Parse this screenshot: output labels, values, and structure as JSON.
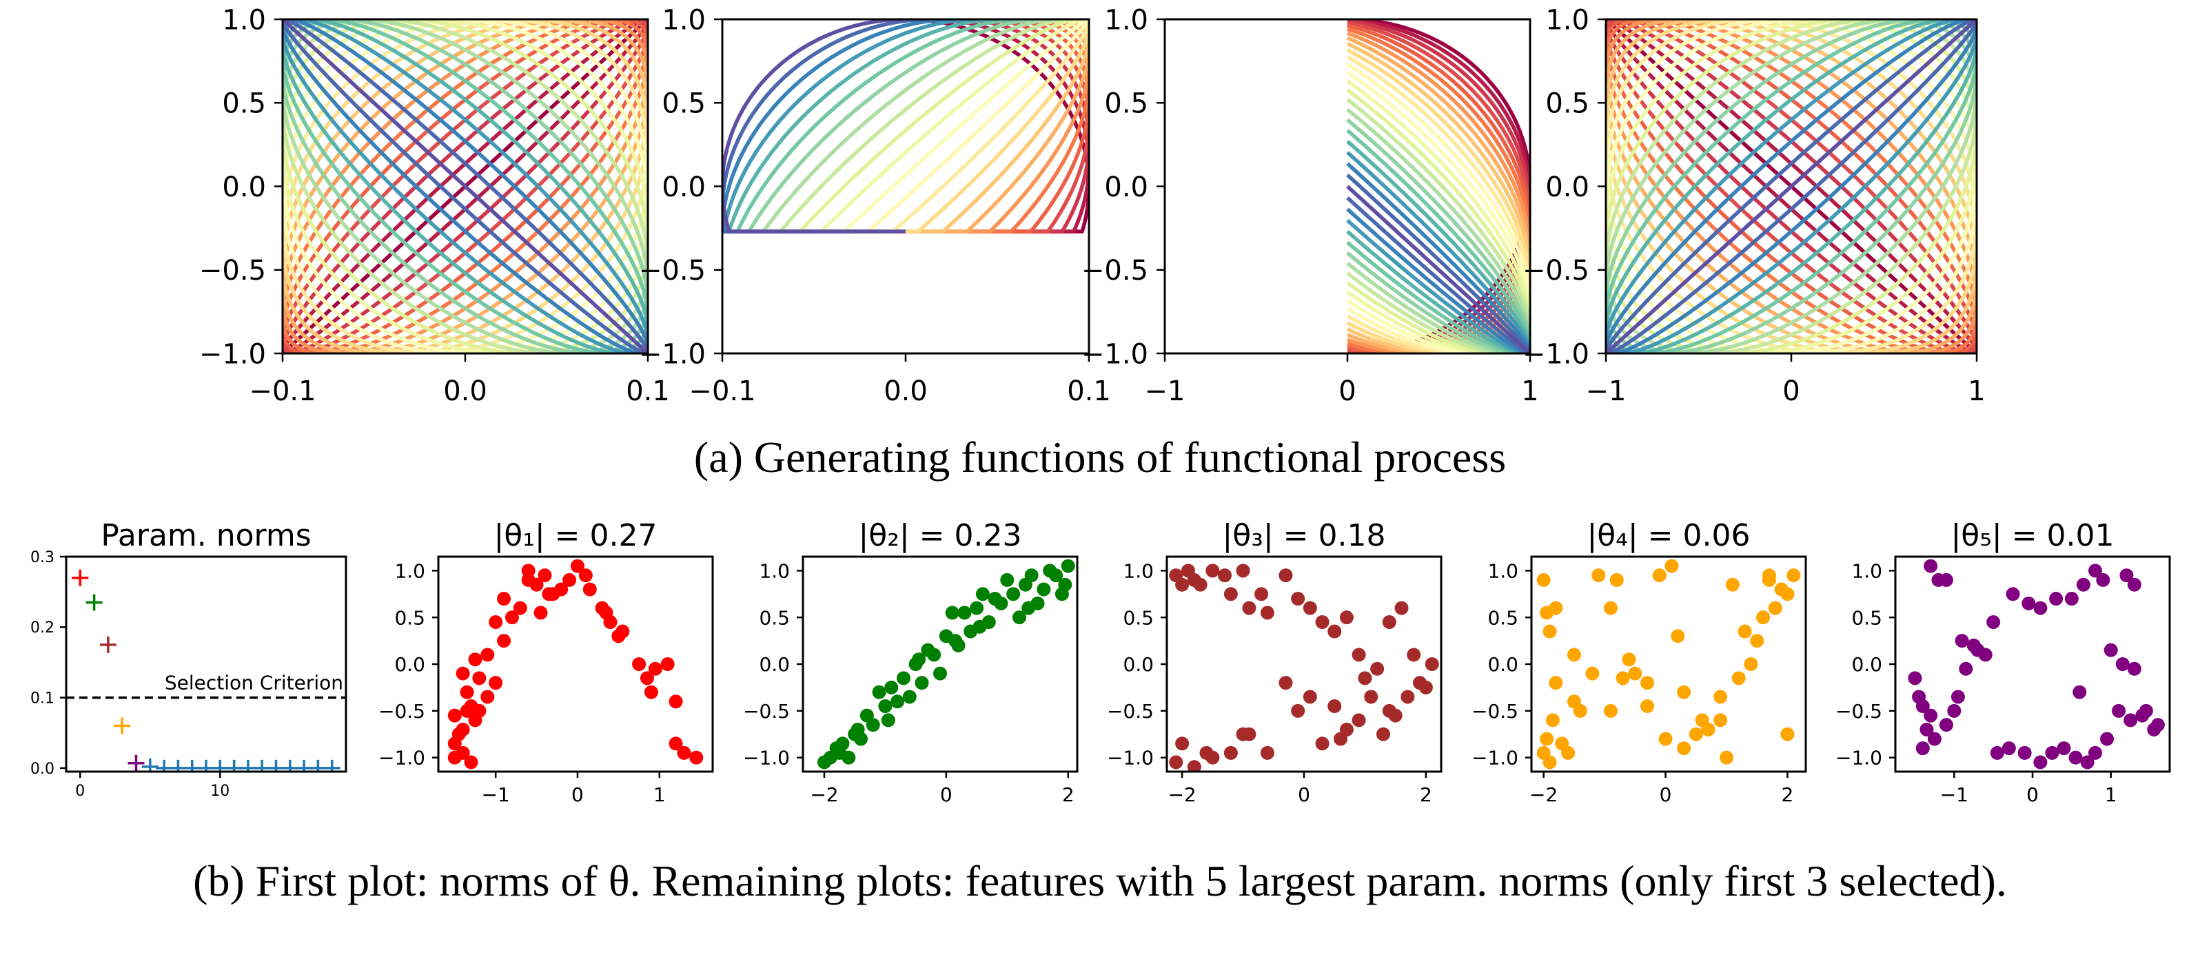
{
  "captions": {
    "a": "(a) Generating functions of functional process",
    "b": "(b) First plot: norms of θ. Remaining plots: features with 5 largest param. norms (only first 3 selected)."
  },
  "chart_data": [
    {
      "id": "a1",
      "type": "line",
      "description_kind": "family-of-parametric-curves",
      "family": {
        "x": "0.1*sin(t + phi)",
        "y": "sin(t)",
        "t_range": [
          -3.14159,
          3.14159
        ],
        "phi_range": [
          0,
          3.14159
        ],
        "curves": 24
      },
      "colormap": "Spectral",
      "xlim": [
        -0.1,
        0.1
      ],
      "ylim": [
        -1,
        1
      ],
      "xticks": [
        "−0.1",
        "0.0",
        "0.1"
      ],
      "yticks": [
        "−1.0",
        "−0.5",
        "0.0",
        "0.5",
        "1.0"
      ]
    },
    {
      "id": "a2",
      "type": "line",
      "description_kind": "family-of-parametric-curves",
      "family": {
        "x": "clip(0.1*sin(t + phi), -0.1, 0.1)",
        "y": "max(cos(t), -0.27)",
        "t_range": [
          0,
          3.14159
        ],
        "phi_range": [
          0,
          3.14159
        ],
        "curves": 24
      },
      "colormap": "Spectral",
      "xlim": [
        -0.1,
        0.1
      ],
      "ylim": [
        -1,
        1
      ],
      "xticks": [
        "−0.1",
        "0.0",
        "0.1"
      ],
      "yticks": [
        "−1.0",
        "−0.5",
        "0.0",
        "0.5",
        "1.0"
      ]
    },
    {
      "id": "a3",
      "type": "line",
      "description_kind": "family-of-parametric-curves",
      "family": {
        "x": "sin(t)",
        "y": "cos(t + phi)",
        "t_range": [
          0,
          3.14159
        ],
        "phi_range": [
          0,
          1.5708
        ],
        "curves": 24
      },
      "colormap": "Spectral",
      "xlim": [
        -1,
        1
      ],
      "ylim": [
        -1,
        1
      ],
      "xticks": [
        "−1",
        "0",
        "1"
      ],
      "yticks": [
        "−1.0",
        "−0.5",
        "0.0",
        "0.5",
        "1.0"
      ]
    },
    {
      "id": "a4",
      "type": "line",
      "description_kind": "family-of-parametric-curves",
      "family": {
        "x": "sin(t)",
        "y": "sin(t + phi)",
        "t_range": [
          -3.14159,
          3.14159
        ],
        "phi_range": [
          -3.14159,
          0
        ],
        "curves": 24
      },
      "colormap": "Spectral",
      "xlim": [
        -1,
        1
      ],
      "ylim": [
        -1,
        1
      ],
      "xticks": [
        "−1",
        "0",
        "1"
      ],
      "yticks": [
        "−1.0",
        "−0.5",
        "0.0",
        "0.5",
        "1.0"
      ]
    },
    {
      "id": "b0",
      "type": "scatter",
      "title": "Param. norms",
      "marker": "+",
      "x": [
        0,
        1,
        2,
        3,
        4,
        5,
        6,
        7,
        8,
        9,
        10,
        11,
        12,
        13,
        14,
        15,
        16,
        17,
        18
      ],
      "y": [
        0.27,
        0.235,
        0.175,
        0.06,
        0.007,
        0.002,
        0,
        0,
        0,
        0,
        0,
        0,
        0,
        0,
        0,
        0,
        0,
        0,
        0
      ],
      "point_colors": [
        "#ff0000",
        "#008000",
        "#a52a2a",
        "#ffa500",
        "#800080",
        "#1f77b4",
        "#1f77b4",
        "#1f77b4",
        "#1f77b4",
        "#1f77b4",
        "#1f77b4",
        "#1f77b4",
        "#1f77b4",
        "#1f77b4",
        "#1f77b4",
        "#1f77b4",
        "#1f77b4",
        "#1f77b4",
        "#1f77b4"
      ],
      "threshold": {
        "y": 0.1,
        "label": "Selection Criterion",
        "style": "dashed"
      },
      "xlim": [
        -1,
        19
      ],
      "ylim": [
        -0.005,
        0.3
      ],
      "xticks": [
        "0",
        "10"
      ],
      "yticks": [
        "0.0",
        "0.1",
        "0.2",
        "0.3"
      ]
    },
    {
      "id": "b1",
      "type": "scatter",
      "title": "|θ₁| = 0.27",
      "color": "#ff0000",
      "xlim": [
        -1.7,
        1.65
      ],
      "ylim": [
        -1.15,
        1.15
      ],
      "xticks": [
        "−1",
        "0",
        "1"
      ],
      "yticks": [
        "−1.0",
        "−0.5",
        "0.0",
        "0.5",
        "1.0"
      ],
      "x": [
        -1.5,
        -1.5,
        -1.4,
        -1.3,
        -1.5,
        -1.4,
        -1.35,
        -1.25,
        -1.3,
        -1.4,
        -1.2,
        -1.25,
        -1.1,
        -1.2,
        -1.0,
        -1.1,
        -0.9,
        -0.8,
        -0.9,
        -0.7,
        -0.6,
        -0.5,
        -0.6,
        -0.4,
        -0.35,
        -0.2,
        -0.1,
        0.0,
        0.1,
        0.15,
        0.3,
        0.35,
        0.5,
        0.55,
        0.75,
        0.85,
        0.95,
        1.1,
        1.2,
        1.3,
        1.45,
        1.2,
        0.4,
        -0.3,
        -0.45,
        -1.45,
        -1.35,
        -1.0,
        0.9
      ],
      "y": [
        -0.85,
        -1.0,
        -0.95,
        -1.05,
        -0.55,
        -0.7,
        -0.3,
        -0.6,
        -0.45,
        -0.1,
        -0.15,
        0.05,
        0.1,
        -0.5,
        0.45,
        -0.35,
        0.25,
        0.5,
        0.7,
        0.6,
        0.9,
        0.85,
        1.0,
        0.95,
        0.75,
        0.8,
        0.9,
        1.05,
        0.95,
        0.8,
        0.6,
        0.55,
        0.3,
        0.35,
        0.0,
        -0.15,
        -0.05,
        0.0,
        -0.85,
        -0.95,
        -1.0,
        -0.4,
        0.45,
        0.75,
        0.55,
        -0.75,
        -0.5,
        -0.2,
        -0.3
      ]
    },
    {
      "id": "b2",
      "type": "scatter",
      "title": "|θ₂| = 0.23",
      "color": "#008000",
      "xlim": [
        -2.35,
        2.15
      ],
      "ylim": [
        -1.15,
        1.15
      ],
      "xticks": [
        "−2",
        "0",
        "2"
      ],
      "yticks": [
        "−1.0",
        "−0.5",
        "0.0",
        "0.5",
        "1.0"
      ],
      "x": [
        -2.0,
        -1.9,
        -1.8,
        -1.7,
        -1.6,
        -1.5,
        -1.4,
        -1.3,
        -1.2,
        -1.1,
        -1.0,
        -0.9,
        -0.8,
        -0.7,
        -0.6,
        -0.5,
        -0.4,
        -0.3,
        -0.2,
        -0.1,
        0.0,
        0.1,
        0.2,
        0.3,
        0.4,
        0.5,
        0.6,
        0.7,
        0.8,
        0.9,
        1.0,
        1.1,
        1.2,
        1.3,
        1.4,
        1.5,
        1.6,
        1.7,
        1.8,
        1.9,
        2.0,
        -1.75,
        -1.45,
        -0.95,
        -0.45,
        0.55,
        1.35,
        1.95,
        0.15
      ],
      "y": [
        -1.05,
        -1.0,
        -0.9,
        -0.85,
        -1.0,
        -0.75,
        -0.8,
        -0.55,
        -0.65,
        -0.3,
        -0.45,
        -0.25,
        -0.4,
        -0.15,
        -0.35,
        0.0,
        -0.2,
        0.15,
        0.1,
        -0.1,
        0.3,
        0.55,
        0.2,
        0.55,
        0.35,
        0.6,
        0.75,
        0.45,
        0.7,
        0.65,
        0.9,
        0.75,
        0.5,
        0.85,
        0.95,
        0.65,
        0.8,
        1.0,
        0.95,
        0.75,
        1.05,
        -0.95,
        -0.7,
        -0.6,
        0.05,
        0.4,
        0.6,
        0.85,
        0.25
      ]
    },
    {
      "id": "b3",
      "type": "scatter",
      "title": "|θ₃| = 0.18",
      "color": "#a52a2a",
      "xlim": [
        -2.25,
        2.25
      ],
      "ylim": [
        -1.15,
        1.15
      ],
      "xticks": [
        "−2",
        "0",
        "2"
      ],
      "yticks": [
        "−1.0",
        "−0.5",
        "0.0",
        "0.5",
        "1.0"
      ],
      "x": [
        -2.1,
        -2.0,
        -1.9,
        -1.8,
        -1.7,
        -1.5,
        -1.3,
        -1.2,
        -1.0,
        -0.9,
        -0.7,
        -0.6,
        -0.3,
        -0.1,
        0.1,
        0.3,
        0.5,
        0.7,
        0.9,
        1.0,
        1.2,
        1.4,
        1.6,
        1.8,
        2.0,
        2.1,
        1.9,
        1.7,
        1.5,
        1.3,
        1.1,
        0.9,
        0.7,
        0.5,
        0.3,
        0.1,
        -0.1,
        -0.3,
        -0.6,
        -0.9,
        -1.2,
        -1.5,
        -1.8,
        -2.0,
        -2.1,
        -1.6,
        -1.0,
        0.6,
        1.4
      ],
      "y": [
        0.95,
        0.85,
        1.0,
        0.9,
        0.85,
        1.0,
        0.95,
        0.75,
        1.0,
        0.6,
        0.75,
        0.55,
        0.95,
        0.7,
        0.6,
        0.45,
        0.35,
        0.5,
        0.1,
        -0.15,
        -0.05,
        0.45,
        0.6,
        0.1,
        -0.25,
        0.0,
        -0.2,
        -0.35,
        -0.55,
        -0.75,
        -0.35,
        -0.6,
        -0.7,
        -0.45,
        -0.85,
        -0.35,
        -0.5,
        -0.2,
        -0.95,
        -0.75,
        -0.95,
        -1.0,
        -1.1,
        -0.85,
        -1.05,
        -0.95,
        -0.75,
        -0.8,
        -0.5
      ]
    },
    {
      "id": "b4",
      "type": "scatter",
      "title": "|θ₄| = 0.06",
      "color": "#ffa500",
      "xlim": [
        -2.2,
        2.3
      ],
      "ylim": [
        -1.15,
        1.15
      ],
      "xticks": [
        "−2",
        "0",
        "2"
      ],
      "yticks": [
        "−1.0",
        "−0.5",
        "0.0",
        "0.5",
        "1.0"
      ],
      "x": [
        -2.0,
        -1.95,
        -1.9,
        -1.8,
        -1.85,
        -1.7,
        -1.9,
        -1.6,
        -1.4,
        -1.1,
        -0.9,
        -0.7,
        -0.5,
        -0.3,
        -0.1,
        0.1,
        0.3,
        0.5,
        0.7,
        0.9,
        1.1,
        1.3,
        1.5,
        1.7,
        1.9,
        2.0,
        2.1,
        1.8,
        1.6,
        1.4,
        1.2,
        0.9,
        0.6,
        0.3,
        0.0,
        -0.3,
        -0.6,
        -0.9,
        -1.2,
        -1.5,
        -1.8,
        -2.0,
        -1.95,
        -1.5,
        -0.8,
        0.2,
        1.0,
        1.7,
        2.0
      ],
      "y": [
        0.9,
        0.55,
        0.35,
        -0.2,
        -0.6,
        -0.85,
        -1.05,
        -0.95,
        -0.5,
        0.95,
        0.6,
        -0.15,
        -0.1,
        -0.45,
        0.95,
        1.05,
        -0.3,
        -0.75,
        -0.7,
        -0.6,
        0.85,
        0.35,
        0.25,
        0.9,
        0.8,
        0.75,
        0.95,
        0.6,
        0.5,
        0.0,
        -0.15,
        -0.35,
        -0.6,
        -0.9,
        -0.8,
        -0.2,
        0.05,
        -0.5,
        -0.1,
        -0.4,
        0.6,
        -0.95,
        -0.8,
        0.1,
        0.9,
        0.3,
        -1.0,
        0.95,
        -0.75
      ]
    },
    {
      "id": "b5",
      "type": "scatter",
      "title": "|θ₅| = 0.01",
      "color": "#800080",
      "xlim": [
        -1.75,
        1.75
      ],
      "ylim": [
        -1.15,
        1.15
      ],
      "xticks": [
        "−1",
        "0",
        "1"
      ],
      "yticks": [
        "−1.0",
        "−0.5",
        "0.0",
        "0.5",
        "1.0"
      ],
      "x": [
        -1.3,
        -1.2,
        -1.1,
        -1.5,
        -1.45,
        -1.4,
        -1.3,
        -1.35,
        -1.25,
        -1.1,
        -1.0,
        -0.9,
        -0.75,
        -0.6,
        -0.45,
        -0.3,
        -0.1,
        0.1,
        0.25,
        0.4,
        0.55,
        0.7,
        0.8,
        0.95,
        1.1,
        1.25,
        1.4,
        1.55,
        1.6,
        1.45,
        1.3,
        1.15,
        1.0,
        1.2,
        0.9,
        0.8,
        0.65,
        0.5,
        0.3,
        0.1,
        -0.05,
        -0.25,
        -0.5,
        -0.7,
        -0.85,
        -1.4,
        0.6,
        1.3,
        -0.95
      ],
      "y": [
        1.05,
        0.9,
        0.9,
        -0.15,
        -0.35,
        -0.45,
        -0.55,
        -0.7,
        -0.8,
        -0.65,
        -0.5,
        0.25,
        0.2,
        0.1,
        -0.95,
        -0.9,
        -0.95,
        -1.05,
        -0.95,
        -0.9,
        -1.0,
        -1.05,
        -0.95,
        -0.8,
        -0.5,
        -0.6,
        -0.55,
        -0.7,
        -0.65,
        -0.5,
        -0.05,
        0.0,
        0.15,
        0.95,
        0.9,
        1.0,
        0.85,
        0.7,
        0.7,
        0.6,
        0.65,
        0.75,
        0.45,
        0.15,
        -0.05,
        -0.9,
        -0.3,
        0.85,
        -0.35
      ]
    }
  ]
}
